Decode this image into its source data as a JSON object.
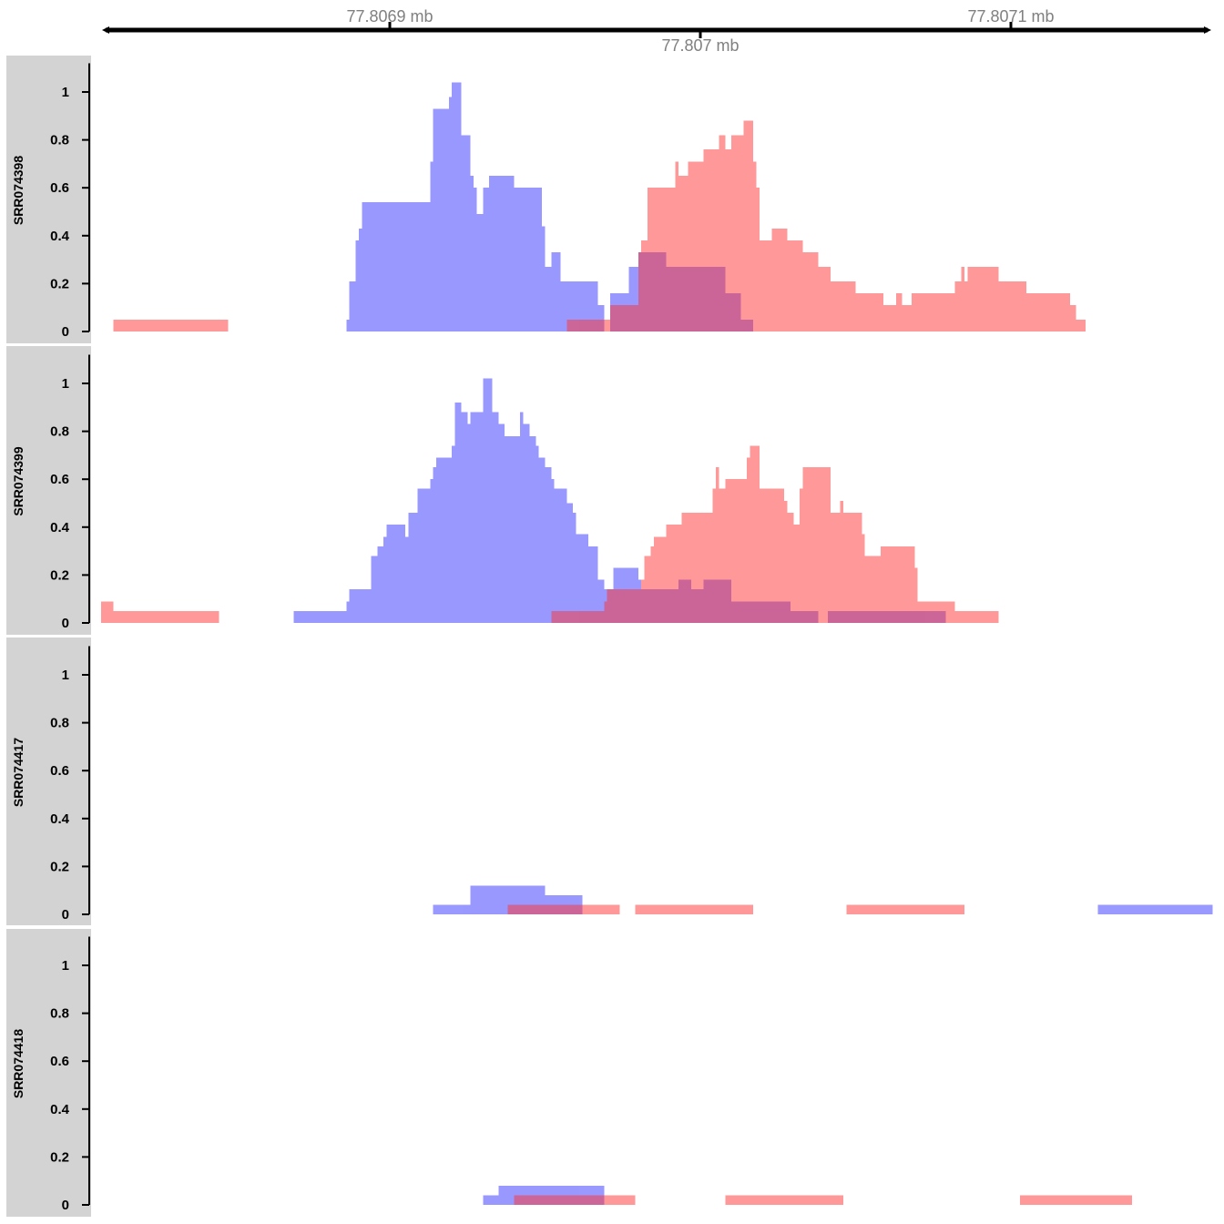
{
  "chart_data": {
    "type": "area",
    "step": true,
    "x_axis": {
      "ticks": [
        {
          "value": 77806900,
          "label": "77.8069 mb",
          "side": "above"
        },
        {
          "value": 77807000,
          "label": "77.807 mb",
          "side": "below"
        },
        {
          "value": 77807100,
          "label": "77.8071 mb",
          "side": "above"
        }
      ],
      "xlim": [
        77806807,
        77807165
      ]
    },
    "colors": {
      "series_1": "#9999FF",
      "series_2": "#FF9999",
      "overlap": "#C05C9A",
      "panel_bg": "#D3D3D3"
    },
    "tracks": [
      {
        "label": "SRR074398",
        "ylim": [
          0,
          1.12
        ],
        "yticks": [
          "0",
          "0.2",
          "0.4",
          "0.6",
          "0.8",
          "1"
        ],
        "series": [
          {
            "color": "#9999FF",
            "steps": [
              [
                77806886,
                77806887,
                0.05
              ],
              [
                77806887,
                77806889,
                0.21
              ],
              [
                77806889,
                77806890,
                0.38
              ],
              [
                77806890,
                77806891,
                0.43
              ],
              [
                77806891,
                77806913,
                0.54
              ],
              [
                77806913,
                77806914,
                0.71
              ],
              [
                77806914,
                77806919,
                0.93
              ],
              [
                77806919,
                77806920,
                0.98
              ],
              [
                77806920,
                77806923,
                1.04
              ],
              [
                77806923,
                77806926,
                0.82
              ],
              [
                77806926,
                77806927,
                0.65
              ],
              [
                77806927,
                77806928,
                0.6
              ],
              [
                77806928,
                77806930,
                0.49
              ],
              [
                77806930,
                77806932,
                0.6
              ],
              [
                77806932,
                77806940,
                0.65
              ],
              [
                77806940,
                77806949,
                0.6
              ],
              [
                77806949,
                77806950,
                0.44
              ],
              [
                77806950,
                77806952,
                0.27
              ],
              [
                77806952,
                77806955,
                0.33
              ],
              [
                77806955,
                77806967,
                0.21
              ],
              [
                77806967,
                77806969,
                0.11
              ],
              [
                77806971,
                77806977,
                0.16
              ],
              [
                77806977,
                77806980,
                0.27
              ],
              [
                77806980,
                77806989,
                0.33
              ],
              [
                77806989,
                77807008,
                0.27
              ],
              [
                77807008,
                77807013,
                0.16
              ],
              [
                77807013,
                77807017,
                0.05
              ]
            ]
          },
          {
            "color": "#FF9999",
            "steps": [
              [
                77806811,
                77806848,
                0.05
              ],
              [
                77806957,
                77806971,
                0.05
              ],
              [
                77806971,
                77806980,
                0.11
              ],
              [
                77806980,
                77806981,
                0.33
              ],
              [
                77806981,
                77806983,
                0.38
              ],
              [
                77806983,
                77806992,
                0.6
              ],
              [
                77806992,
                77806993,
                0.71
              ],
              [
                77806993,
                77806996,
                0.65
              ],
              [
                77806996,
                77807001,
                0.71
              ],
              [
                77807001,
                77807006,
                0.76
              ],
              [
                77807006,
                77807008,
                0.82
              ],
              [
                77807008,
                77807010,
                0.76
              ],
              [
                77807010,
                77807014,
                0.82
              ],
              [
                77807014,
                77807017,
                0.88
              ],
              [
                77807017,
                77807018,
                0.71
              ],
              [
                77807018,
                77807019,
                0.6
              ],
              [
                77807019,
                77807023,
                0.38
              ],
              [
                77807023,
                77807028,
                0.43
              ],
              [
                77807028,
                77807033,
                0.38
              ],
              [
                77807033,
                77807038,
                0.33
              ],
              [
                77807038,
                77807042,
                0.27
              ],
              [
                77807042,
                77807050,
                0.21
              ],
              [
                77807050,
                77807059,
                0.16
              ],
              [
                77807059,
                77807063,
                0.11
              ],
              [
                77807063,
                77807065,
                0.16
              ],
              [
                77807065,
                77807068,
                0.11
              ],
              [
                77807068,
                77807082,
                0.16
              ],
              [
                77807082,
                77807084,
                0.21
              ],
              [
                77807084,
                77807085,
                0.27
              ],
              [
                77807085,
                77807086,
                0.21
              ],
              [
                77807086,
                77807096,
                0.27
              ],
              [
                77807096,
                77807105,
                0.21
              ],
              [
                77807105,
                77807119,
                0.16
              ],
              [
                77807119,
                77807121,
                0.11
              ],
              [
                77807121,
                77807124,
                0.05
              ]
            ]
          }
        ]
      },
      {
        "label": "SRR074399",
        "ylim": [
          0,
          1.12
        ],
        "yticks": [
          "0",
          "0.2",
          "0.4",
          "0.6",
          "0.8",
          "1"
        ],
        "series": [
          {
            "color": "#9999FF",
            "steps": [
              [
                77806869,
                77806886,
                0.05
              ],
              [
                77806886,
                77806887,
                0.09
              ],
              [
                77806887,
                77806894,
                0.14
              ],
              [
                77806894,
                77806896,
                0.28
              ],
              [
                77806896,
                77806898,
                0.32
              ],
              [
                77806898,
                77806899,
                0.36
              ],
              [
                77806899,
                77806905,
                0.41
              ],
              [
                77806905,
                77806906,
                0.36
              ],
              [
                77806906,
                77806909,
                0.46
              ],
              [
                77806909,
                77806913,
                0.56
              ],
              [
                77806913,
                77806914,
                0.6
              ],
              [
                77806914,
                77806915,
                0.65
              ],
              [
                77806915,
                77806920,
                0.69
              ],
              [
                77806920,
                77806921,
                0.74
              ],
              [
                77806921,
                77806923,
                0.92
              ],
              [
                77806923,
                77806925,
                0.88
              ],
              [
                77806925,
                77806926,
                0.83
              ],
              [
                77806926,
                77806930,
                0.88
              ],
              [
                77806930,
                77806933,
                1.02
              ],
              [
                77806933,
                77806935,
                0.88
              ],
              [
                77806935,
                77806937,
                0.83
              ],
              [
                77806937,
                77806942,
                0.78
              ],
              [
                77806942,
                77806943,
                0.88
              ],
              [
                77806943,
                77806945,
                0.83
              ],
              [
                77806945,
                77806947,
                0.78
              ],
              [
                77806947,
                77806948,
                0.74
              ],
              [
                77806948,
                77806950,
                0.69
              ],
              [
                77806950,
                77806952,
                0.65
              ],
              [
                77806952,
                77806953,
                0.6
              ],
              [
                77806953,
                77806957,
                0.56
              ],
              [
                77806957,
                77806959,
                0.5
              ],
              [
                77806959,
                77806960,
                0.46
              ],
              [
                77806960,
                77806964,
                0.37
              ],
              [
                77806964,
                77806967,
                0.32
              ],
              [
                77806967,
                77806969,
                0.18
              ],
              [
                77806969,
                77806972,
                0.14
              ],
              [
                77806972,
                77806980,
                0.23
              ],
              [
                77806980,
                77806981,
                0.18
              ],
              [
                77806981,
                77806993,
                0.14
              ],
              [
                77806993,
                77806997,
                0.18
              ],
              [
                77806997,
                77807001,
                0.14
              ],
              [
                77807001,
                77807010,
                0.18
              ],
              [
                77807010,
                77807029,
                0.09
              ],
              [
                77807029,
                77807038,
                0.05
              ],
              [
                77807041,
                77807079,
                0.05
              ]
            ]
          },
          {
            "color": "#FF9999",
            "steps": [
              [
                77806807,
                77806811,
                0.09
              ],
              [
                77806811,
                77806845,
                0.05
              ],
              [
                77806952,
                77806969,
                0.05
              ],
              [
                77806969,
                77806970,
                0.09
              ],
              [
                77806970,
                77806981,
                0.14
              ],
              [
                77806981,
                77806982,
                0.18
              ],
              [
                77806982,
                77806984,
                0.28
              ],
              [
                77806984,
                77806985,
                0.32
              ],
              [
                77806985,
                77806989,
                0.36
              ],
              [
                77806989,
                77806994,
                0.41
              ],
              [
                77806994,
                77807004,
                0.46
              ],
              [
                77807004,
                77807005,
                0.56
              ],
              [
                77807005,
                77807006,
                0.65
              ],
              [
                77807006,
                77807008,
                0.56
              ],
              [
                77807008,
                77807015,
                0.6
              ],
              [
                77807015,
                77807016,
                0.69
              ],
              [
                77807016,
                77807019,
                0.74
              ],
              [
                77807019,
                77807027,
                0.56
              ],
              [
                77807027,
                77807028,
                0.51
              ],
              [
                77807028,
                77807030,
                0.46
              ],
              [
                77807030,
                77807032,
                0.41
              ],
              [
                77807032,
                77807033,
                0.56
              ],
              [
                77807033,
                77807042,
                0.65
              ],
              [
                77807042,
                77807045,
                0.46
              ],
              [
                77807045,
                77807046,
                0.51
              ],
              [
                77807046,
                77807052,
                0.46
              ],
              [
                77807052,
                77807053,
                0.37
              ],
              [
                77807053,
                77807058,
                0.28
              ],
              [
                77807058,
                77807069,
                0.32
              ],
              [
                77807069,
                77807070,
                0.23
              ],
              [
                77807070,
                77807082,
                0.09
              ],
              [
                77807082,
                77807096,
                0.05
              ]
            ]
          }
        ]
      },
      {
        "label": "SRR074417",
        "ylim": [
          0,
          1.12
        ],
        "yticks": [
          "0",
          "0.2",
          "0.4",
          "0.6",
          "0.8",
          "1"
        ],
        "series": [
          {
            "color": "#9999FF",
            "steps": [
              [
                77806914,
                77806926,
                0.04
              ],
              [
                77806926,
                77806950,
                0.12
              ],
              [
                77806950,
                77806962,
                0.08
              ],
              [
                77807128,
                77807165,
                0.04
              ]
            ]
          },
          {
            "color": "#FF9999",
            "steps": [
              [
                77806938,
                77806974,
                0.04
              ],
              [
                77806979,
                77807017,
                0.04
              ],
              [
                77807047,
                77807085,
                0.04
              ]
            ]
          }
        ]
      },
      {
        "label": "SRR074418",
        "ylim": [
          0,
          1.12
        ],
        "yticks": [
          "0",
          "0.2",
          "0.4",
          "0.6",
          "0.8",
          "1"
        ],
        "series": [
          {
            "color": "#9999FF",
            "steps": [
              [
                77806930,
                77806935,
                0.04
              ],
              [
                77806935,
                77806969,
                0.08
              ]
            ]
          },
          {
            "color": "#FF9999",
            "steps": [
              [
                77806940,
                77806979,
                0.04
              ],
              [
                77807008,
                77807046,
                0.04
              ],
              [
                77807103,
                77807139,
                0.04
              ]
            ]
          }
        ]
      }
    ]
  }
}
